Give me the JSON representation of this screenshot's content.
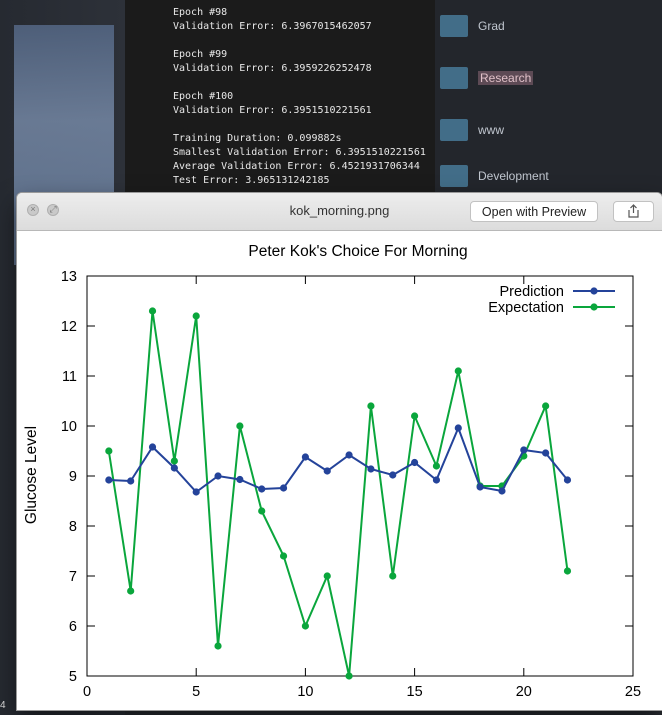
{
  "desktop": {
    "corner_number": "4",
    "terminal_lines": [
      "Epoch #98",
      "Validation Error: 6.3967015462057",
      "",
      "Epoch #99",
      "Validation Error: 6.3959226252478",
      "",
      "Epoch #100",
      "Validation Error: 6.3951510221561",
      "",
      "Training Duration: 0.099882s",
      "Smallest Validation Error: 6.3951510221561",
      "Average Validation Error: 6.4521931706344",
      "Test Error: 3.965131242185"
    ],
    "finder_items": [
      {
        "label": "Grad"
      },
      {
        "label": "Research"
      },
      {
        "label": "www"
      },
      {
        "label": "Development"
      }
    ]
  },
  "window": {
    "title": "kok_morning.png",
    "open_with_label": "Open with Preview",
    "share_icon": "share-icon"
  },
  "chart_data": {
    "type": "line",
    "title": "Peter Kok's Choice For Morning",
    "xlabel": "",
    "ylabel": "Glucose Level",
    "xlim": [
      0,
      25
    ],
    "ylim": [
      5,
      13
    ],
    "x_ticks": [
      "0",
      "5",
      "10",
      "15",
      "20",
      "25"
    ],
    "y_ticks": [
      "5",
      "6",
      "7",
      "8",
      "9",
      "10",
      "11",
      "12",
      "13"
    ],
    "legend_position": "top-right",
    "grid": false,
    "x": [
      1,
      2,
      3,
      4,
      5,
      6,
      7,
      8,
      9,
      10,
      11,
      12,
      13,
      14,
      15,
      16,
      17,
      18,
      19,
      20,
      21,
      22
    ],
    "series": [
      {
        "name": "Prediction",
        "color": "#24439a",
        "values": [
          8.92,
          8.9,
          9.58,
          9.16,
          8.68,
          9.0,
          8.93,
          8.74,
          8.76,
          9.38,
          9.1,
          9.42,
          9.14,
          9.02,
          9.27,
          8.92,
          9.96,
          8.78,
          8.7,
          9.52,
          9.46,
          8.92
        ]
      },
      {
        "name": "Expectation",
        "color": "#0aa63c",
        "values": [
          9.5,
          6.7,
          12.3,
          9.3,
          12.2,
          5.6,
          10.0,
          8.3,
          7.4,
          6.0,
          7.0,
          5.0,
          10.4,
          7.0,
          10.2,
          9.2,
          11.1,
          8.8,
          8.8,
          9.4,
          10.4,
          7.1
        ]
      }
    ]
  }
}
